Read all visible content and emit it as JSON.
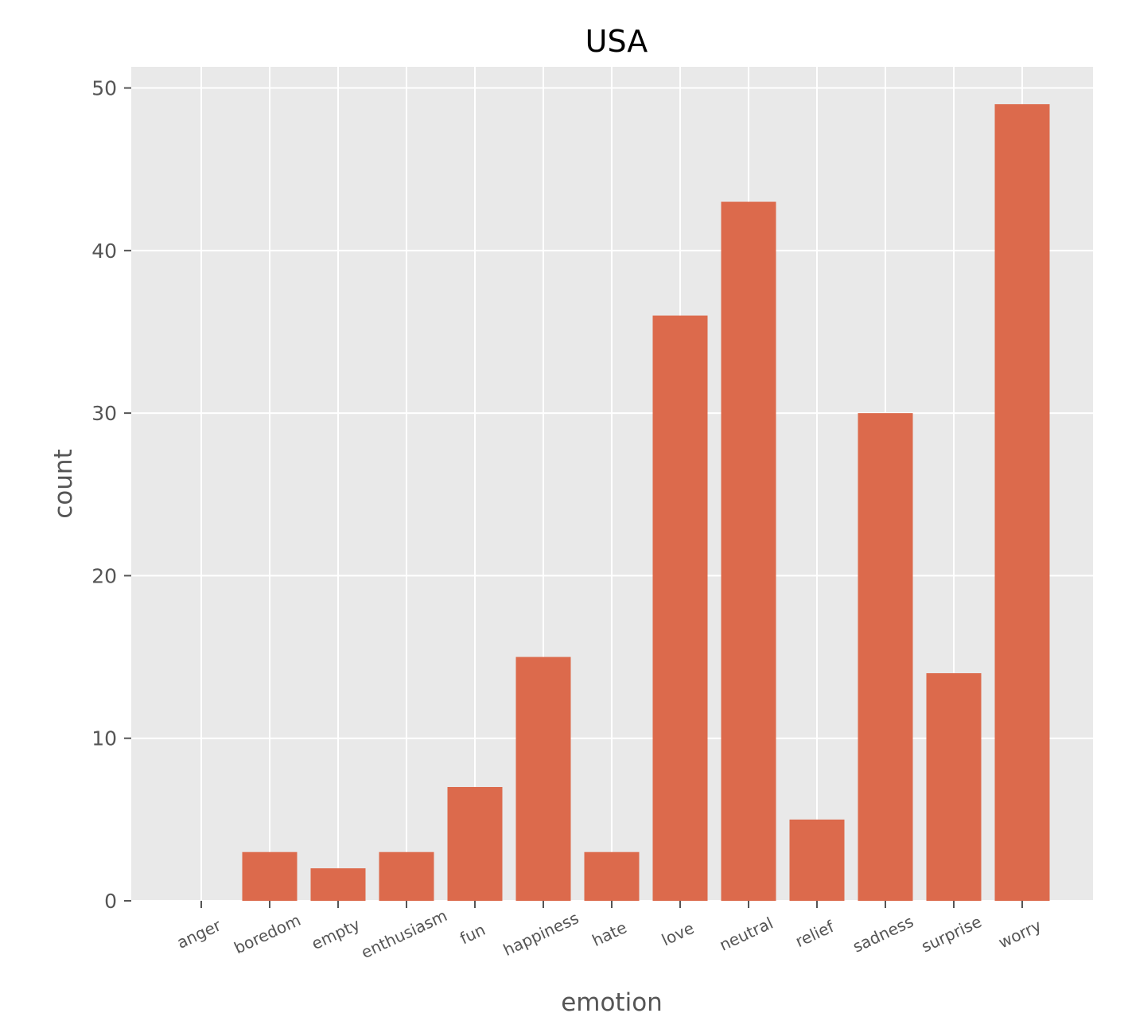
{
  "chart_data": {
    "type": "bar",
    "title": "USA",
    "xlabel": "emotion",
    "ylabel": "count",
    "categories": [
      "anger",
      "boredom",
      "empty",
      "enthusiasm",
      "fun",
      "happiness",
      "hate",
      "love",
      "neutral",
      "relief",
      "sadness",
      "surprise",
      "worry"
    ],
    "values": [
      0,
      3,
      2,
      3,
      7,
      15,
      3,
      36,
      43,
      5,
      30,
      14,
      49
    ],
    "ylim": [
      0,
      51.3
    ],
    "yticks": [
      0,
      10,
      20,
      30,
      40,
      50
    ],
    "grid": true,
    "bar_color": "#dc6a4c",
    "background_color": "#e9e9e9",
    "grid_color": "#ffffff"
  }
}
